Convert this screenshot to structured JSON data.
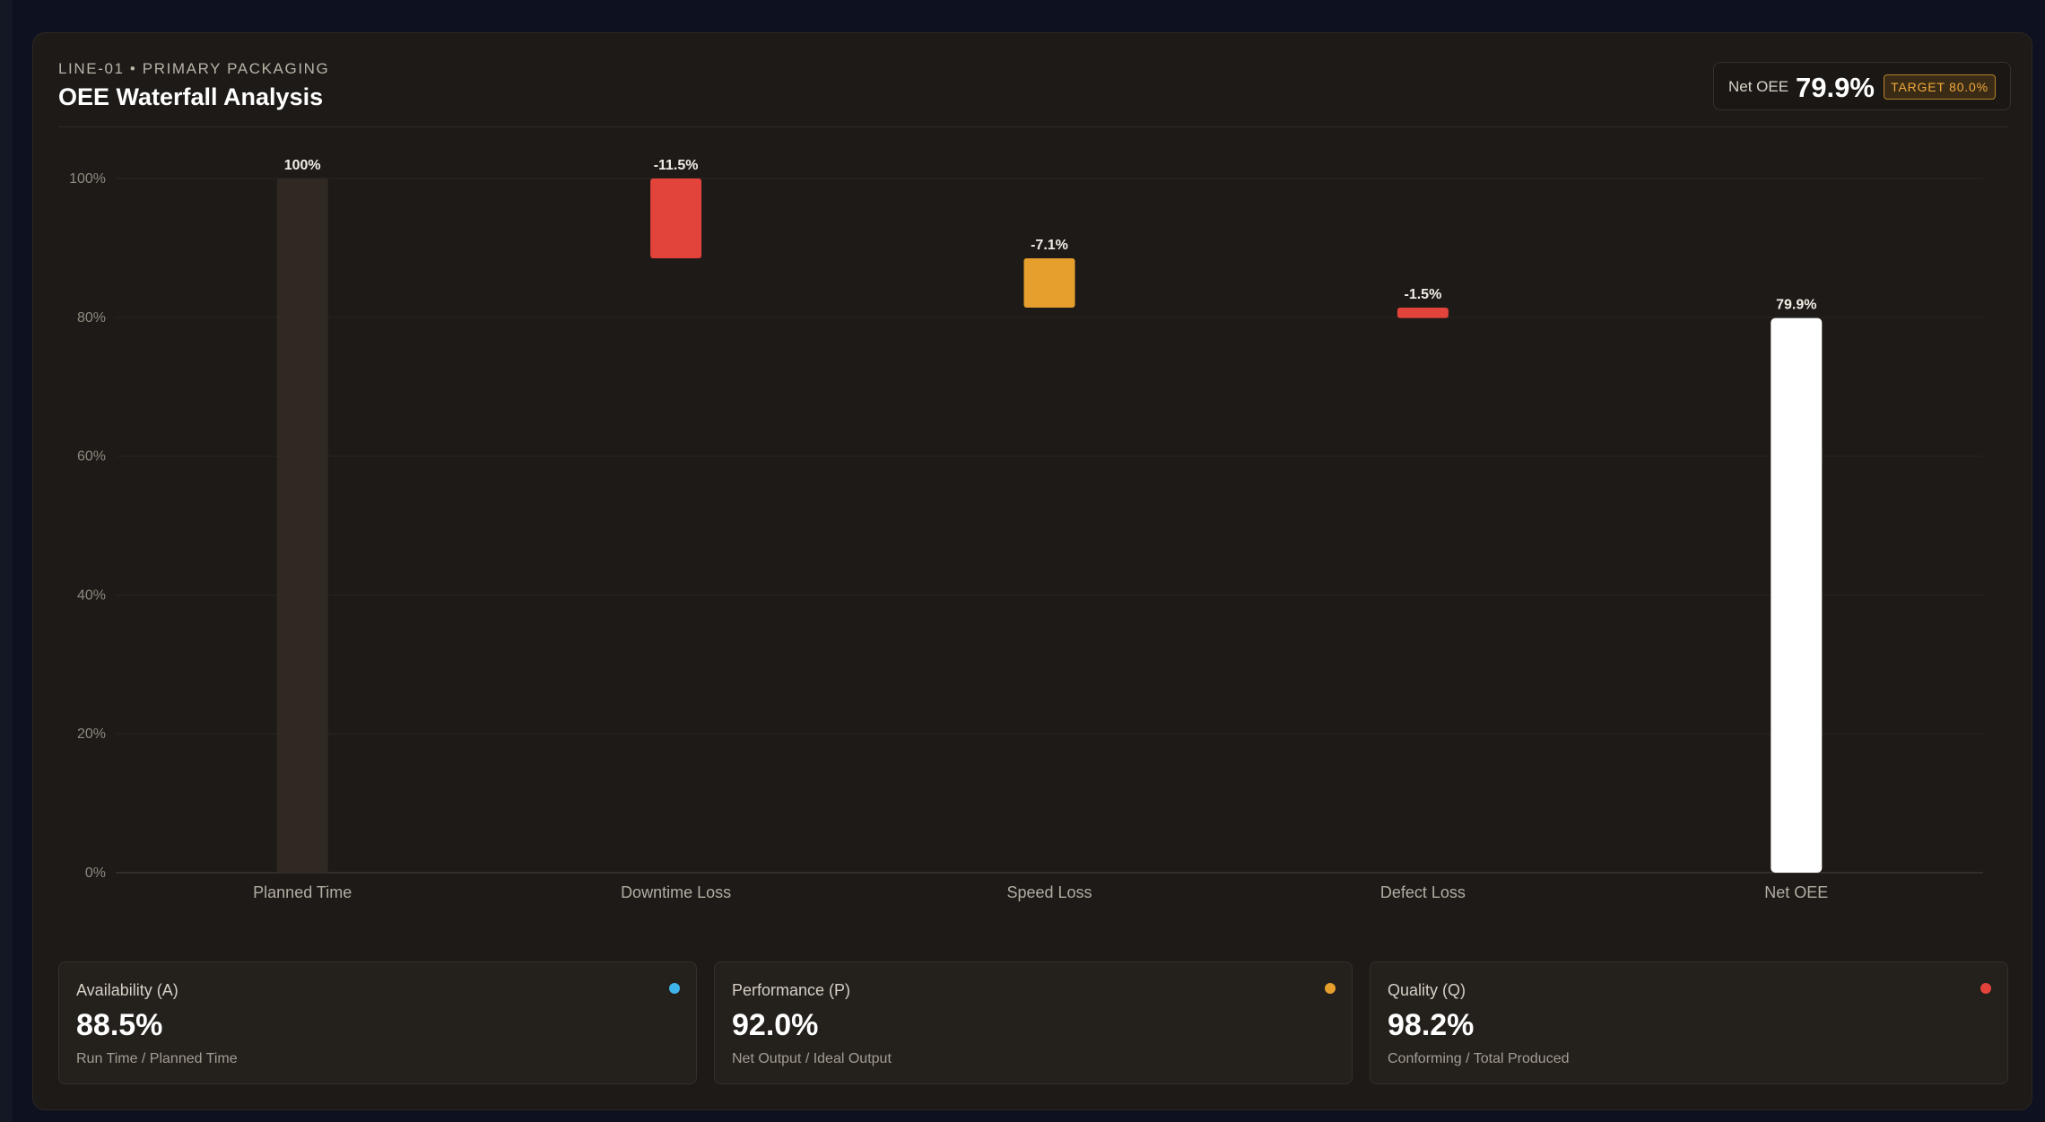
{
  "header": {
    "eyebrow": "LINE-01 • PRIMARY PACKAGING",
    "title": "OEE Waterfall Analysis",
    "net_label": "Net OEE",
    "net_value": "79.9%",
    "target_badge": "TARGET 80.0%"
  },
  "chart_data": {
    "type": "bar",
    "subtype": "waterfall",
    "ylim": [
      0,
      100
    ],
    "yticks": [
      0,
      20,
      40,
      60,
      80,
      100
    ],
    "ytick_suffix": "%",
    "grid": true,
    "bars": [
      {
        "category": "Planned Time",
        "start": 0,
        "end": 100,
        "label": "100%",
        "color": "#302923",
        "kind": "total"
      },
      {
        "category": "Downtime Loss",
        "start": 88.5,
        "end": 100,
        "label": "-11.5%",
        "color": "#e2433b",
        "kind": "loss"
      },
      {
        "category": "Speed Loss",
        "start": 81.4,
        "end": 88.5,
        "label": "-7.1%",
        "color": "#e69f2d",
        "kind": "loss"
      },
      {
        "category": "Defect Loss",
        "start": 79.9,
        "end": 81.4,
        "label": "-1.5%",
        "color": "#e2433b",
        "kind": "loss"
      },
      {
        "category": "Net OEE",
        "start": 0,
        "end": 79.9,
        "label": "79.9%",
        "color": "#ffffff",
        "kind": "total"
      }
    ]
  },
  "metrics": [
    {
      "name": "Availability (A)",
      "value": "88.5%",
      "formula": "Run Time / Planned Time",
      "dot_color": "#3fb4ea"
    },
    {
      "name": "Performance (P)",
      "value": "92.0%",
      "formula": "Net Output / Ideal Output",
      "dot_color": "#e69f2d"
    },
    {
      "name": "Quality (Q)",
      "value": "98.2%",
      "formula": "Conforming / Total Produced",
      "dot_color": "#e2433b"
    }
  ]
}
